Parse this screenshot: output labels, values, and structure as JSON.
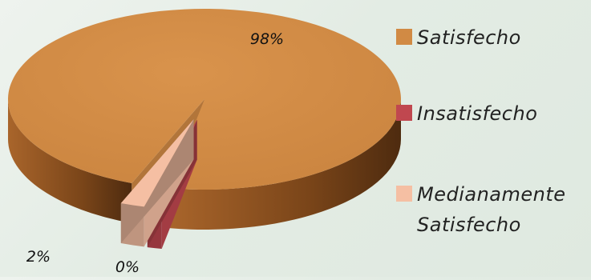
{
  "chart_data": {
    "type": "pie",
    "categories": [
      "Satisfecho",
      "Insatisfecho",
      "Medianamente Satisfecho"
    ],
    "values": [
      98,
      0,
      2
    ],
    "data_labels": [
      "98%",
      "0%",
      "2%"
    ],
    "colors": [
      "#d18a44",
      "#c0474f",
      "#f5bfa3"
    ],
    "legend_placement": "right",
    "three_d": true
  }
}
